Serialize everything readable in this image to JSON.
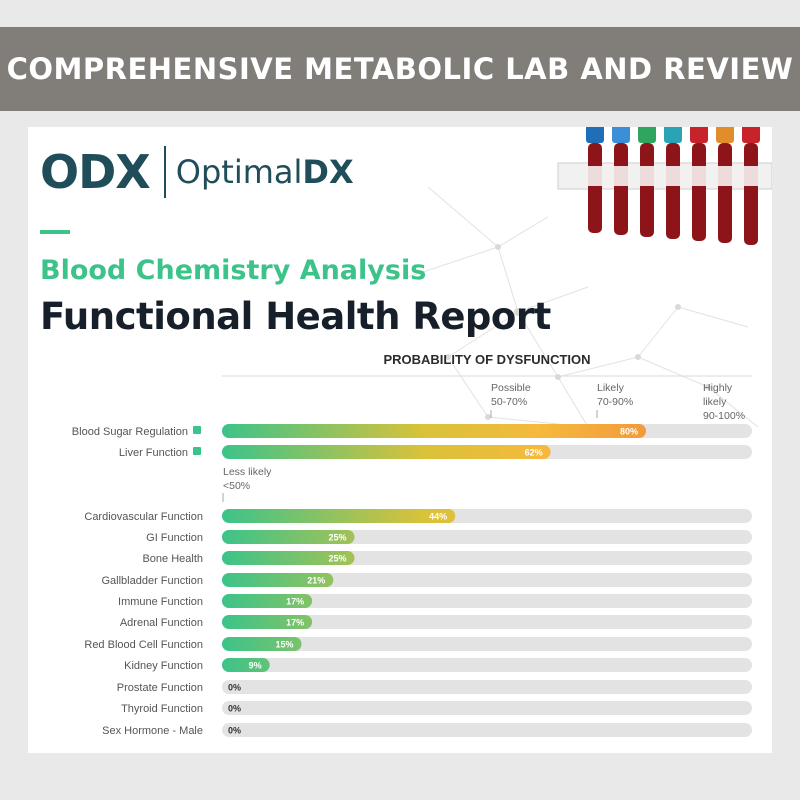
{
  "banner": {
    "title": "COMPREHENSIVE METABOLIC LAB AND REVIEW"
  },
  "brand": {
    "logo_mark": "ODX",
    "logo_name_prefix": "Optimal",
    "logo_name_suffix": "DX"
  },
  "report": {
    "subtitle": "Blood Chemistry Analysis",
    "title": "Functional Health Report"
  },
  "colors": {
    "green": "#3cc38a",
    "yellow": "#d9c23a",
    "orange": "#f39a3b",
    "track": "#e3e3e3",
    "teal": "#1f4e5a"
  },
  "chart_data": {
    "type": "bar",
    "orientation": "horizontal",
    "title": "PROBABILITY OF DYSFUNCTION",
    "xlim": [
      0,
      100
    ],
    "thresholds": [
      {
        "lines": [
          "Possible",
          "50-70%"
        ],
        "at": 50
      },
      {
        "lines": [
          "Likely",
          "70-90%"
        ],
        "at": 70
      },
      {
        "lines": [
          "Highly",
          "likely",
          "90-100%"
        ],
        "at": 90
      }
    ],
    "group_note": {
      "lines": [
        "Less likely",
        "<50%"
      ]
    },
    "categories": [
      "Blood Sugar Regulation",
      "Liver Function",
      "Cardiovascular Function",
      "GI Function",
      "Bone Health",
      "Gallbladder Function",
      "Immune Function",
      "Adrenal Function",
      "Red Blood Cell Function",
      "Kidney Function",
      "Prostate Function",
      "Thyroid Function",
      "Sex Hormone - Male"
    ],
    "values": [
      80,
      62,
      44,
      25,
      25,
      21,
      17,
      17,
      15,
      9,
      0,
      0,
      0
    ],
    "value_labels": [
      "80%",
      "62%",
      "44%",
      "25%",
      "25%",
      "21%",
      "17%",
      "17%",
      "15%",
      "9%",
      "0%",
      "0%",
      "0%"
    ],
    "flagged": [
      true,
      true,
      false,
      false,
      false,
      false,
      false,
      false,
      false,
      false,
      false,
      false,
      false
    ]
  }
}
